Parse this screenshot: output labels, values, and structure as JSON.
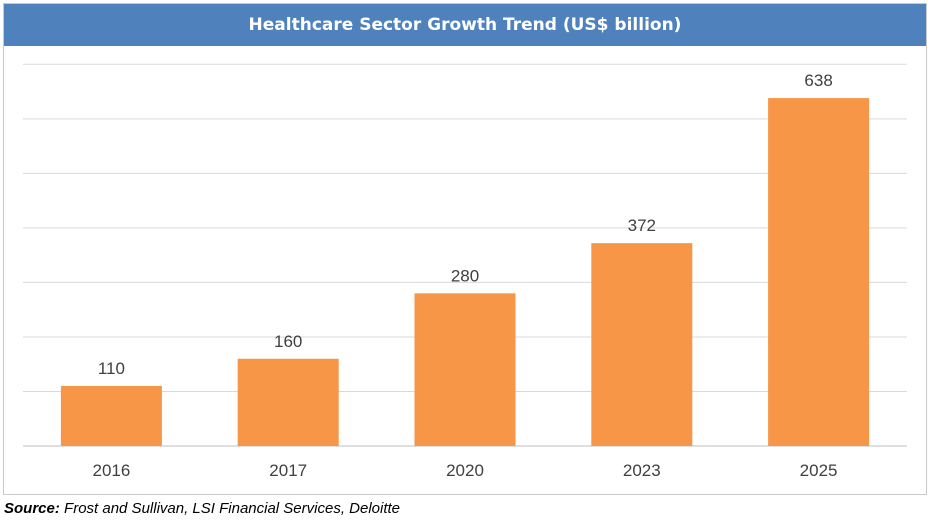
{
  "source": {
    "prefix": "Source:",
    "text": "Frost and Sullivan, LSI Financial Services, Deloitte"
  },
  "colors": {
    "title_bg": "#4f81bd",
    "bar": "#f79646",
    "grid": "#d9d9d9",
    "axis": "#bfbfbf"
  },
  "chart_data": {
    "type": "bar",
    "title": "Healthcare Sector Growth Trend (US$ billion)",
    "categories": [
      "2016",
      "2017",
      "2020",
      "2023",
      "2025"
    ],
    "values": [
      110,
      160,
      280,
      372,
      638
    ],
    "data_labels": [
      "110",
      "160",
      "280",
      "372",
      "638"
    ],
    "ylim": [
      0,
      700
    ],
    "grid": true,
    "xlabel": "",
    "ylabel": ""
  }
}
